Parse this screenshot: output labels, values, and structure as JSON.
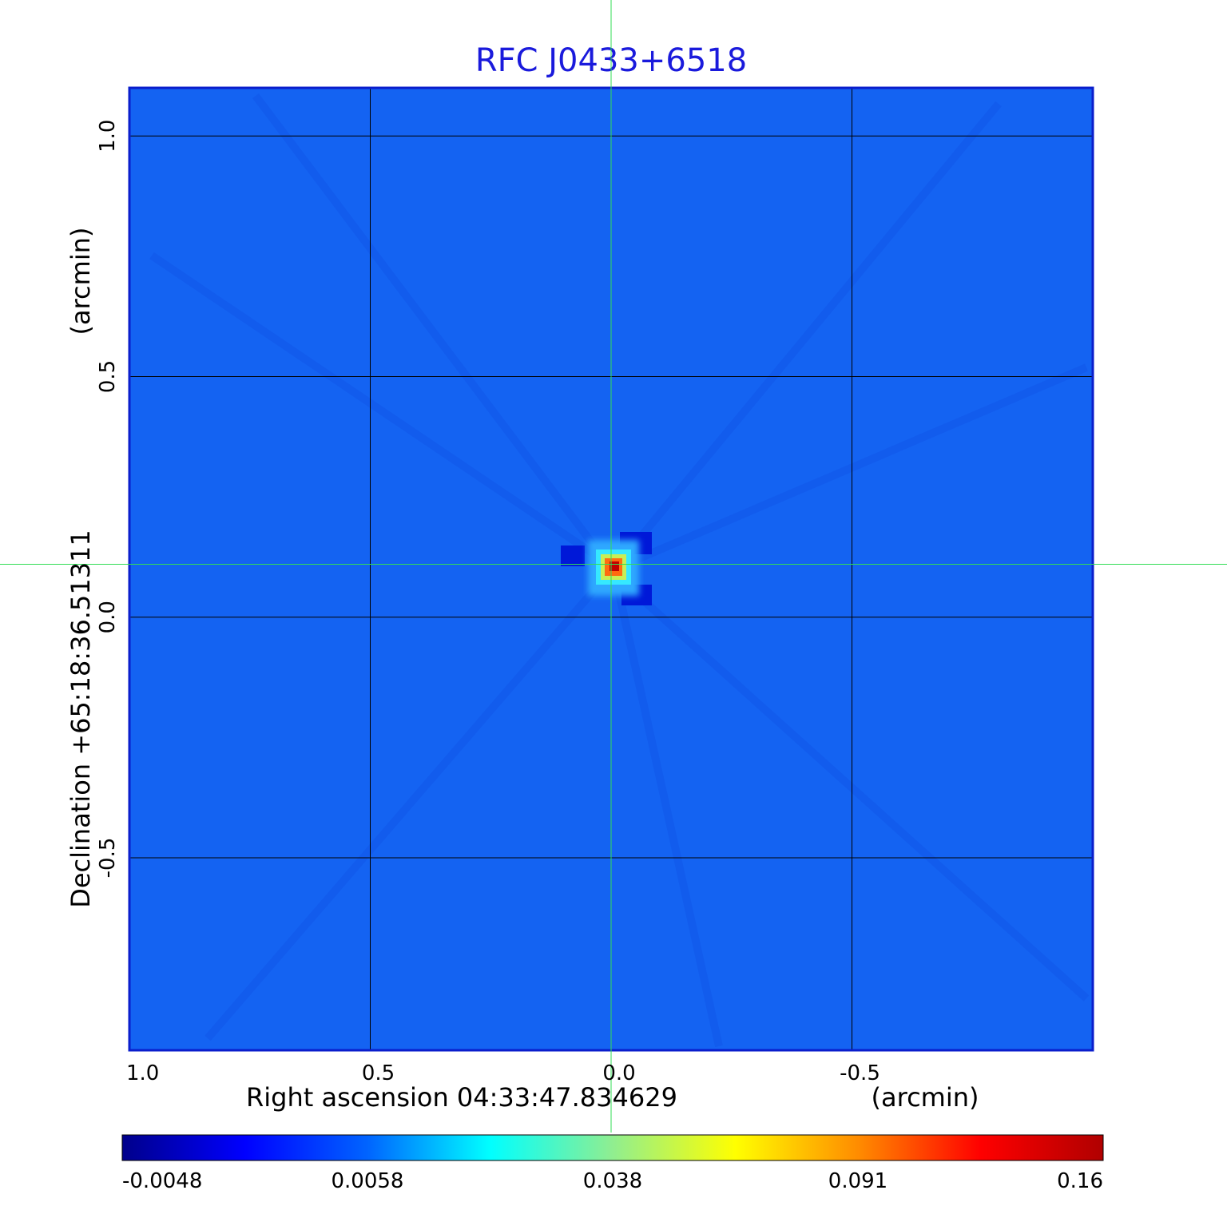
{
  "chart_data": {
    "type": "heatmap",
    "title": "RFC J0433+6518",
    "xlabel": "Right ascension  04:33:47.834629",
    "xunit": "(arcmin)",
    "ylabel": "Declination  +65:18:36.51311",
    "yunit": "(arcmin)",
    "xlim": [
      1.0,
      -1.0
    ],
    "ylim": [
      -0.9,
      1.1
    ],
    "x_ticks": [
      {
        "value": 1.0,
        "label": "1.0"
      },
      {
        "value": 0.5,
        "label": "0.5"
      },
      {
        "value": 0.0,
        "label": "0.0"
      },
      {
        "value": -0.5,
        "label": "-0.5"
      }
    ],
    "y_ticks": [
      {
        "value": 1.0,
        "label": "1.0"
      },
      {
        "value": 0.5,
        "label": "0.5"
      },
      {
        "value": 0.0,
        "label": "0.0"
      },
      {
        "value": -0.5,
        "label": "-0.5"
      }
    ],
    "grid": true,
    "crosshair": {
      "x": 0.0,
      "y": 0.11
    },
    "source_peak": {
      "x": 0.0,
      "y": 0.11,
      "value": 0.16
    },
    "colorbar": {
      "min": -0.0048,
      "max": 0.16,
      "tick_labels": [
        "-0.0048",
        "0.0058",
        "0.038",
        "0.091",
        "0.16"
      ],
      "colormap": [
        "#00008b",
        "#0000ff",
        "#0064ff",
        "#00ffff",
        "#90ee90",
        "#ffff00",
        "#ff8c00",
        "#ff0000",
        "#b00000"
      ]
    },
    "colors": {
      "title": "#1a1adc",
      "frame": "#0a1ecc",
      "background_field": "#1463f2",
      "crosshair": "#33dd55",
      "grid": "#000000"
    }
  }
}
